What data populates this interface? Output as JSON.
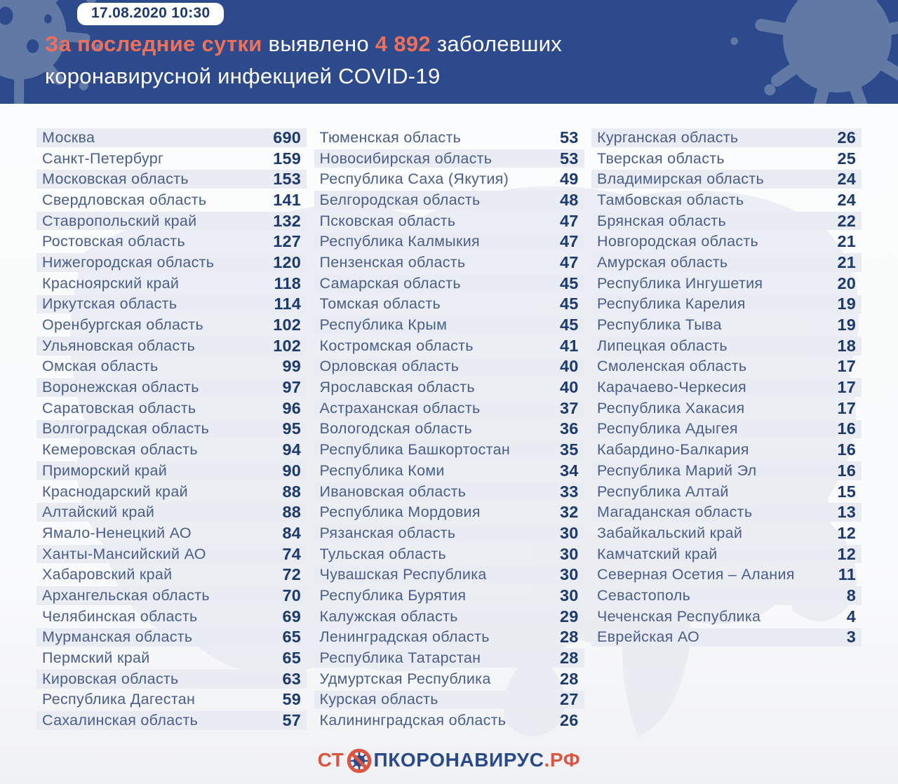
{
  "header": {
    "badge": "17.08.2020 10:30",
    "title_accent_lead": "За последние сутки",
    "title_word_mid": "выявлено",
    "title_number": "4 892",
    "title_word_tail": "заболевших",
    "title_line2": "коронавирусной инфекцией COVID-19"
  },
  "colors": {
    "header_bg": "#2d4a8c",
    "accent_orange": "#ee6f5a",
    "logo_orange": "#dd5540",
    "navy_number": "#1d3a6e",
    "region_text": "#4b5e8a",
    "row_stripe": "#e9ecf2",
    "splash_blue": "#6279a6"
  },
  "footer": {
    "logo_prefix": "СТ",
    "logo_main": "ПКОРОНАВИРУС",
    "logo_suffix": ".РФ"
  },
  "chart_data": {
    "type": "table",
    "title": "За последние сутки выявлено 4 892 заболевших коронавирусной инфекцией COVID-19",
    "timestamp": "17.08.2020 10:30",
    "new_cases_total": 4892,
    "columns": [
      [
        {
          "region": "Москва",
          "value": 690
        },
        {
          "region": "Санкт-Петербург",
          "value": 159
        },
        {
          "region": "Московская область",
          "value": 153
        },
        {
          "region": "Свердловская область",
          "value": 141
        },
        {
          "region": "Ставропольский край",
          "value": 132
        },
        {
          "region": "Ростовская область",
          "value": 127
        },
        {
          "region": "Нижегородская область",
          "value": 120
        },
        {
          "region": "Красноярский край",
          "value": 118
        },
        {
          "region": "Иркутская область",
          "value": 114
        },
        {
          "region": "Оренбургская область",
          "value": 102
        },
        {
          "region": "Ульяновская область",
          "value": 102
        },
        {
          "region": "Омская область",
          "value": 99
        },
        {
          "region": "Воронежская область",
          "value": 97
        },
        {
          "region": "Саратовская область",
          "value": 96
        },
        {
          "region": "Волгоградская область",
          "value": 95
        },
        {
          "region": "Кемеровская область",
          "value": 94
        },
        {
          "region": "Приморский край",
          "value": 90
        },
        {
          "region": "Краснодарский край",
          "value": 88
        },
        {
          "region": "Алтайский край",
          "value": 88
        },
        {
          "region": "Ямало-Ненецкий АО",
          "value": 84
        },
        {
          "region": "Ханты-Мансийский АО",
          "value": 74
        },
        {
          "region": "Хабаровский край",
          "value": 72
        },
        {
          "region": "Архангельская область",
          "value": 70
        },
        {
          "region": "Челябинская область",
          "value": 69
        },
        {
          "region": "Мурманская область",
          "value": 65
        },
        {
          "region": "Пермский край",
          "value": 65
        },
        {
          "region": "Кировская область",
          "value": 63
        },
        {
          "region": "Республика Дагестан",
          "value": 59
        },
        {
          "region": "Сахалинская область",
          "value": 57
        }
      ],
      [
        {
          "region": "Тюменская область",
          "value": 53
        },
        {
          "region": "Новосибирская область",
          "value": 53
        },
        {
          "region": "Республика Саха (Якутия)",
          "value": 49
        },
        {
          "region": "Белгородская область",
          "value": 48
        },
        {
          "region": "Псковская область",
          "value": 47
        },
        {
          "region": "Республика Калмыкия",
          "value": 47
        },
        {
          "region": "Пензенская область",
          "value": 47
        },
        {
          "region": "Самарская область",
          "value": 45
        },
        {
          "region": "Томская область",
          "value": 45
        },
        {
          "region": "Республика Крым",
          "value": 45
        },
        {
          "region": "Костромская область",
          "value": 41
        },
        {
          "region": "Орловская область",
          "value": 40
        },
        {
          "region": "Ярославская область",
          "value": 40
        },
        {
          "region": "Астраханская область",
          "value": 37
        },
        {
          "region": "Вологодская область",
          "value": 36
        },
        {
          "region": "Республика Башкортостан",
          "value": 35
        },
        {
          "region": "Республика Коми",
          "value": 34
        },
        {
          "region": "Ивановская область",
          "value": 33
        },
        {
          "region": "Республика Мордовия",
          "value": 32
        },
        {
          "region": "Рязанская область",
          "value": 30
        },
        {
          "region": "Тульская область",
          "value": 30
        },
        {
          "region": "Чувашская Республика",
          "value": 30
        },
        {
          "region": "Республика Бурятия",
          "value": 30
        },
        {
          "region": "Калужская область",
          "value": 29
        },
        {
          "region": "Ленинградская область",
          "value": 28
        },
        {
          "region": "Республика Татарстан",
          "value": 28
        },
        {
          "region": "Удмуртская Республика",
          "value": 28
        },
        {
          "region": "Курская область",
          "value": 27
        },
        {
          "region": "Калининградская область",
          "value": 26
        }
      ],
      [
        {
          "region": "Курганская область",
          "value": 26
        },
        {
          "region": "Тверская область",
          "value": 25
        },
        {
          "region": "Владимирская область",
          "value": 24
        },
        {
          "region": "Тамбовская область",
          "value": 24
        },
        {
          "region": "Брянская область",
          "value": 22
        },
        {
          "region": "Новгородская область",
          "value": 21
        },
        {
          "region": "Амурская область",
          "value": 21
        },
        {
          "region": "Республика Ингушетия",
          "value": 20
        },
        {
          "region": "Республика Карелия",
          "value": 19
        },
        {
          "region": "Республика Тыва",
          "value": 19
        },
        {
          "region": "Липецкая область",
          "value": 18
        },
        {
          "region": "Смоленская область",
          "value": 17
        },
        {
          "region": "Карачаево-Черкесия",
          "value": 17
        },
        {
          "region": "Республика Хакасия",
          "value": 17
        },
        {
          "region": "Республика Адыгея",
          "value": 16
        },
        {
          "region": "Кабардино-Балкария",
          "value": 16
        },
        {
          "region": "Республика Марий Эл",
          "value": 16
        },
        {
          "region": "Республика Алтай",
          "value": 15
        },
        {
          "region": "Магаданская область",
          "value": 13
        },
        {
          "region": "Забайкальский край",
          "value": 12
        },
        {
          "region": "Камчатский край",
          "value": 12
        },
        {
          "region": "Северная Осетия – Алания",
          "value": 11
        },
        {
          "region": "Севастополь",
          "value": 8
        },
        {
          "region": "Чеченская Республика",
          "value": 4
        },
        {
          "region": "Еврейская АО",
          "value": 3
        }
      ]
    ]
  }
}
